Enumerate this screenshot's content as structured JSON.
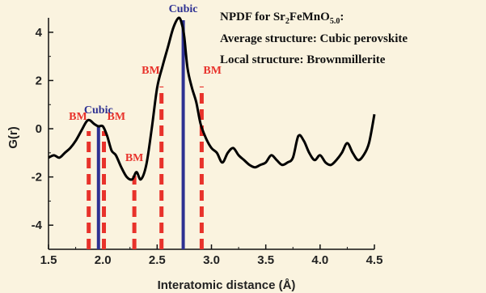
{
  "chart_data": {
    "type": "line",
    "xlabel": "Interatomic distance (Å)",
    "ylabel": "G(r)",
    "xlim": [
      1.5,
      4.5
    ],
    "ylim": [
      -5,
      4.6
    ],
    "x_ticks": [
      1.5,
      2.0,
      2.5,
      3.0,
      3.5,
      4.0,
      4.5
    ],
    "x_tick_labels": [
      "1.5",
      "2.0",
      "2.5",
      "3.0",
      "3.5",
      "4.0",
      "4.5"
    ],
    "y_ticks": [
      -4,
      -2,
      0,
      2,
      4
    ],
    "y_tick_labels": [
      "-4",
      "-2",
      "0",
      "2",
      "4"
    ],
    "grid": false,
    "series": [
      {
        "x": [
          1.5,
          1.55,
          1.6,
          1.65,
          1.7,
          1.75,
          1.8,
          1.85,
          1.88,
          1.92,
          1.96,
          2.0,
          2.04,
          2.08,
          2.12,
          2.17,
          2.22,
          2.27,
          2.31,
          2.35,
          2.4,
          2.45,
          2.5,
          2.55,
          2.6,
          2.65,
          2.7,
          2.73,
          2.75,
          2.78,
          2.82,
          2.86,
          2.9,
          2.95,
          3.0,
          3.05,
          3.1,
          3.15,
          3.2,
          3.25,
          3.3,
          3.35,
          3.4,
          3.45,
          3.5,
          3.55,
          3.6,
          3.65,
          3.7,
          3.75,
          3.8,
          3.85,
          3.9,
          3.95,
          4.0,
          4.05,
          4.1,
          4.15,
          4.2,
          4.25,
          4.3,
          4.35,
          4.4,
          4.45,
          4.5
        ],
        "y": [
          -1.2,
          -1.1,
          -1.2,
          -1.0,
          -0.8,
          -0.5,
          -0.1,
          0.3,
          0.35,
          0.2,
          0.1,
          0.1,
          -0.3,
          -0.9,
          -1.1,
          -1.6,
          -2.0,
          -2.1,
          -1.8,
          -2.1,
          -1.5,
          0.0,
          1.7,
          2.6,
          3.4,
          4.2,
          4.6,
          4.3,
          3.8,
          2.5,
          1.7,
          1.1,
          0.2,
          -0.4,
          -0.8,
          -1.0,
          -1.4,
          -1.0,
          -0.8,
          -1.1,
          -1.3,
          -1.5,
          -1.6,
          -1.5,
          -1.4,
          -1.1,
          -1.3,
          -1.5,
          -1.4,
          -1.2,
          -0.3,
          -0.5,
          -1.0,
          -1.3,
          -1.1,
          -1.4,
          -1.5,
          -1.3,
          -1.0,
          -0.6,
          -1.0,
          -1.3,
          -1.1,
          -0.6,
          0.6
        ]
      }
    ],
    "markers": [
      {
        "x": 1.87,
        "top": -0.1,
        "color": "#e8322b",
        "style": "dashed",
        "label": "BM"
      },
      {
        "x": 2.01,
        "top": -0.1,
        "color": "#e8322b",
        "style": "dashed",
        "label": "BM"
      },
      {
        "x": 2.29,
        "top": -1.95,
        "color": "#e8322b",
        "style": "dashed",
        "label": "BM"
      },
      {
        "x": 2.54,
        "top": 1.75,
        "color": "#e8322b",
        "style": "dashed",
        "label": "BM"
      },
      {
        "x": 2.91,
        "top": 1.75,
        "color": "#e8322b",
        "style": "dashed",
        "label": "BM"
      },
      {
        "x": 1.96,
        "top": 0.1,
        "color": "#2e3192",
        "style": "solid",
        "label": "Cubic"
      },
      {
        "x": 2.74,
        "top": 4.5,
        "color": "#2e3192",
        "style": "solid",
        "label": "Cubic"
      }
    ],
    "annotations": {
      "line1_main": "NPDF for Sr",
      "line1_sub1": "2",
      "line1_mid": "FeMnO",
      "line1_sub2": "5.0",
      "line1_end": ":",
      "line2": "Average structure: Cubic perovskite",
      "line3": "Local structure: Brownmillerite"
    }
  }
}
